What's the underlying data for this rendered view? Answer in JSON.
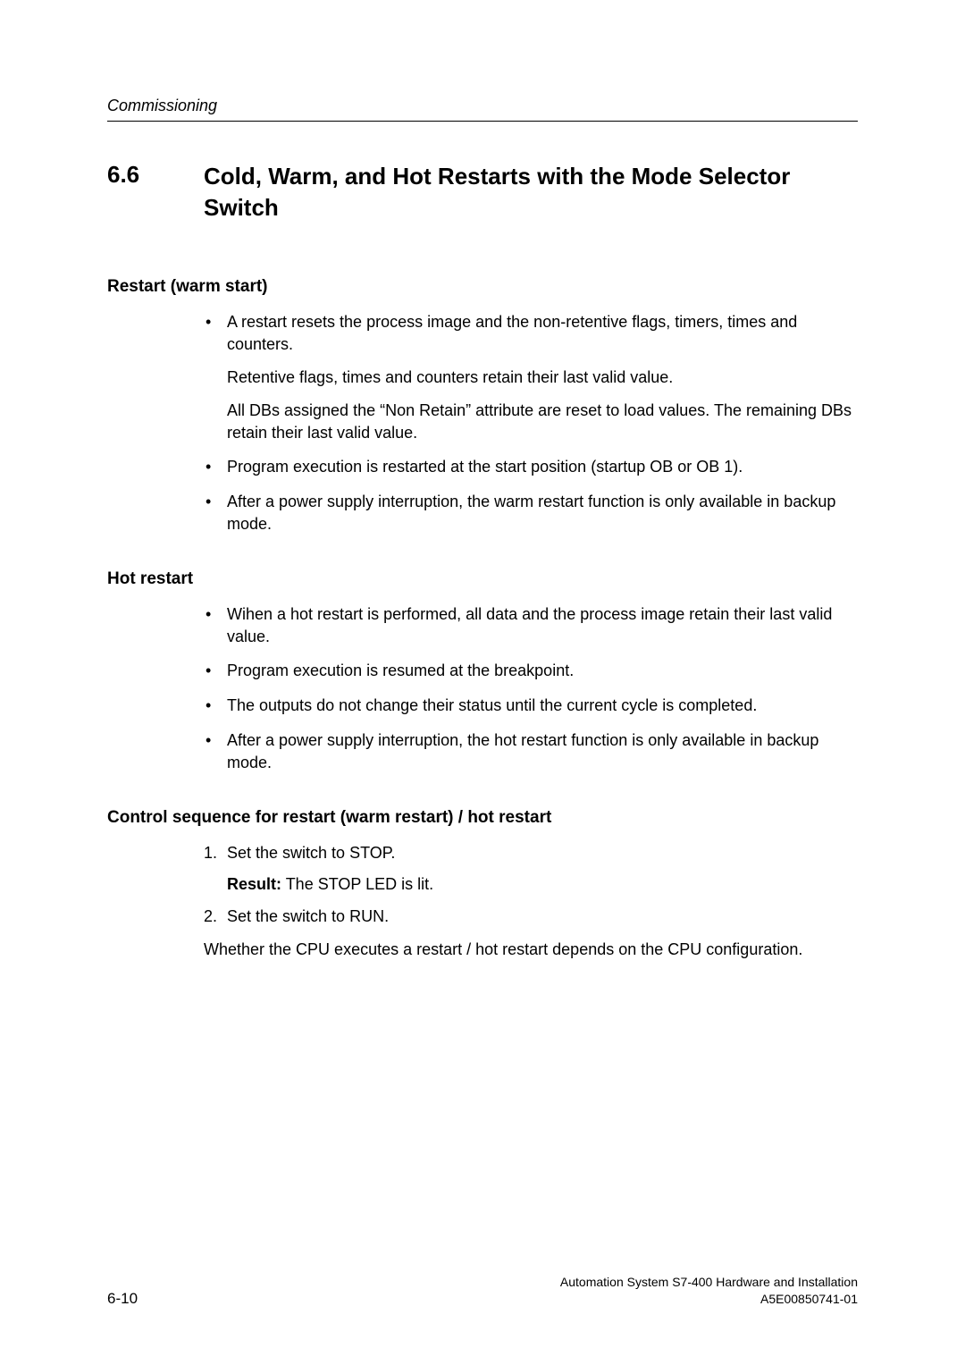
{
  "page": {
    "running_header": "Commissioning",
    "section_number": "6.6",
    "section_title": "Cold, Warm, and Hot Restarts with the Mode Selector Switch"
  },
  "restart": {
    "heading": "Restart (warm start)",
    "b1_p1": "A restart resets the process image and the non-retentive flags, timers, times and counters.",
    "b1_p2": "Retentive flags, times and counters retain their last valid value.",
    "b1_p3": "All DBs assigned the “Non Retain” attribute are reset to load values. The remaining DBs retain their last valid value.",
    "b2": "Program execution is restarted at the start position (startup OB or OB 1).",
    "b3": "After a power supply interruption, the warm restart function is only available in backup mode."
  },
  "hot": {
    "heading": "Hot restart",
    "b1": "Wihen a hot restart is performed, all data and the process image retain their last valid value.",
    "b2": "Program execution is resumed at the breakpoint.",
    "b3": "The outputs do not change their status until the current cycle is completed.",
    "b4": "After a power supply interruption, the hot restart function is only available in backup mode."
  },
  "control": {
    "heading": "Control sequence for restart (warm restart) / hot restart",
    "step1": "Set the switch to STOP.",
    "result_label": "Result:",
    "result_text": " The STOP LED is lit.",
    "step2": "Set the switch to RUN.",
    "after": "Whether the CPU executes a restart / hot restart depends on the CPU configuration."
  },
  "footer": {
    "page_number": "6-10",
    "right_line1": "Automation System S7-400  Hardware and Installation",
    "right_line2": "A5E00850741-01"
  }
}
